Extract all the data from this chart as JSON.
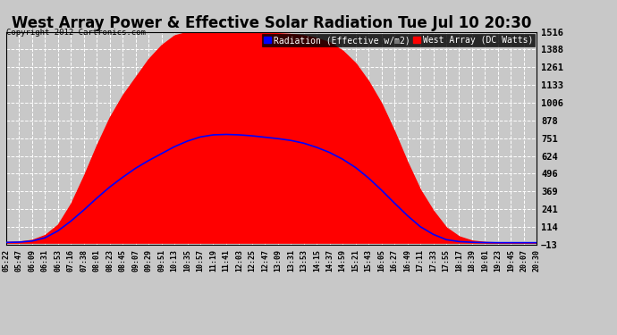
{
  "title": "West Array Power & Effective Solar Radiation Tue Jul 10 20:30",
  "copyright": "Copyright 2012 Cartronics.com",
  "legend_radiation": "Radiation (Effective w/m2)",
  "legend_west": "West Array (DC Watts)",
  "y_ticks": [
    -13.4,
    114.0,
    241.4,
    368.8,
    496.3,
    623.7,
    751.1,
    878.5,
    1005.9,
    1133.4,
    1260.8,
    1388.2,
    1515.6
  ],
  "ylim": [
    -13.4,
    1515.6
  ],
  "background_color": "#c8c8c8",
  "plot_bg_color": "#c8c8c8",
  "grid_color": "#ffffff",
  "title_color": "#000000",
  "red_fill_color": "#ff0000",
  "blue_line_color": "#0000ff",
  "time_labels": [
    "05:22",
    "05:47",
    "06:09",
    "06:31",
    "06:53",
    "07:16",
    "07:38",
    "08:01",
    "08:23",
    "08:45",
    "09:07",
    "09:29",
    "09:51",
    "10:13",
    "10:35",
    "10:57",
    "11:19",
    "11:41",
    "12:03",
    "12:25",
    "12:47",
    "13:09",
    "13:31",
    "13:53",
    "14:15",
    "14:37",
    "14:59",
    "15:21",
    "15:43",
    "16:05",
    "16:27",
    "16:49",
    "17:11",
    "17:33",
    "17:55",
    "18:17",
    "18:39",
    "19:01",
    "19:23",
    "19:45",
    "20:07",
    "20:30"
  ],
  "red_values": [
    5,
    8,
    20,
    55,
    130,
    280,
    480,
    700,
    900,
    1060,
    1190,
    1320,
    1420,
    1490,
    1515,
    1515,
    1510,
    1508,
    1510,
    1512,
    1508,
    1505,
    1500,
    1490,
    1470,
    1440,
    1380,
    1290,
    1160,
    1000,
    800,
    580,
    380,
    230,
    110,
    45,
    15,
    5,
    2,
    1,
    0,
    0
  ],
  "blue_values": [
    2,
    4,
    12,
    35,
    85,
    155,
    235,
    320,
    400,
    470,
    535,
    590,
    640,
    690,
    730,
    760,
    775,
    778,
    775,
    768,
    758,
    748,
    735,
    715,
    685,
    648,
    600,
    540,
    465,
    378,
    285,
    195,
    115,
    60,
    22,
    8,
    3,
    1,
    0,
    0,
    0,
    0
  ]
}
